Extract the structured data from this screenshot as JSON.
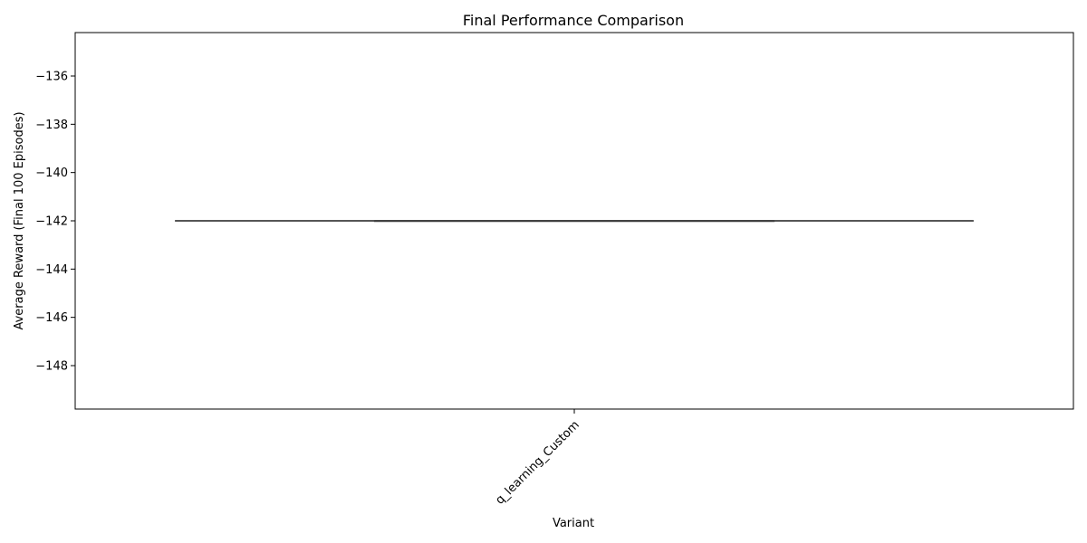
{
  "chart_data": {
    "type": "box",
    "title": "Final Performance Comparison",
    "xlabel": "Variant",
    "ylabel": "Average Reward (Final 100 Episodes)",
    "categories": [
      "q_learning_Custom"
    ],
    "series": [
      {
        "category": "q_learning_Custom",
        "min": -142,
        "q1": -142,
        "median": -142,
        "q3": -142,
        "max": -142
      }
    ],
    "ylim": [
      -149.8,
      -134.2
    ],
    "yticks": [
      -136,
      -138,
      -140,
      -142,
      -144,
      -146,
      -148
    ],
    "ytick_labels": [
      "−136",
      "−138",
      "−140",
      "−142",
      "−144",
      "−146",
      "−148"
    ],
    "grid": false,
    "legend": "none",
    "colors": {
      "box_line": "#3f3f3f",
      "axes": "#000000"
    }
  }
}
